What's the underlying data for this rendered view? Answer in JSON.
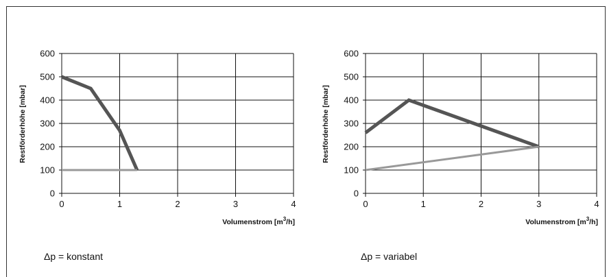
{
  "chart_data": [
    {
      "type": "line",
      "xlabel_pre": "Volumenstrom [m",
      "xlabel_sup": "3",
      "xlabel_post": "/h]",
      "ylabel": "Restförderhöhe [mbar]",
      "xlim": [
        0,
        4
      ],
      "ylim": [
        0,
        600
      ],
      "xticks": [
        0,
        1,
        2,
        3,
        4
      ],
      "yticks": [
        0,
        100,
        200,
        300,
        400,
        500,
        600
      ],
      "grid": true,
      "caption": "Δp = konstant",
      "series": [
        {
          "color": "#555555",
          "width": 5,
          "points": [
            [
              0,
              500
            ],
            [
              0.5,
              450
            ],
            [
              1.0,
              270
            ],
            [
              1.3,
              100
            ]
          ]
        },
        {
          "color": "#999999",
          "width": 3,
          "points": [
            [
              0,
              100
            ],
            [
              1.3,
              100
            ]
          ]
        }
      ]
    },
    {
      "type": "line",
      "xlabel_pre": "Volumenstrom [m",
      "xlabel_sup": "3",
      "xlabel_post": "/h]",
      "ylabel": "Restförderhöhe [mbar]",
      "xlim": [
        0,
        4
      ],
      "ylim": [
        0,
        600
      ],
      "xticks": [
        0,
        1,
        2,
        3,
        4
      ],
      "yticks": [
        0,
        100,
        200,
        300,
        400,
        500,
        600
      ],
      "grid": true,
      "caption": "Δp = variabel",
      "series": [
        {
          "color": "#555555",
          "width": 5,
          "points": [
            [
              0,
              260
            ],
            [
              0.75,
              400
            ],
            [
              3,
              200
            ]
          ]
        },
        {
          "color": "#999999",
          "width": 3,
          "points": [
            [
              0,
              100
            ],
            [
              3,
              200
            ]
          ]
        }
      ]
    }
  ]
}
